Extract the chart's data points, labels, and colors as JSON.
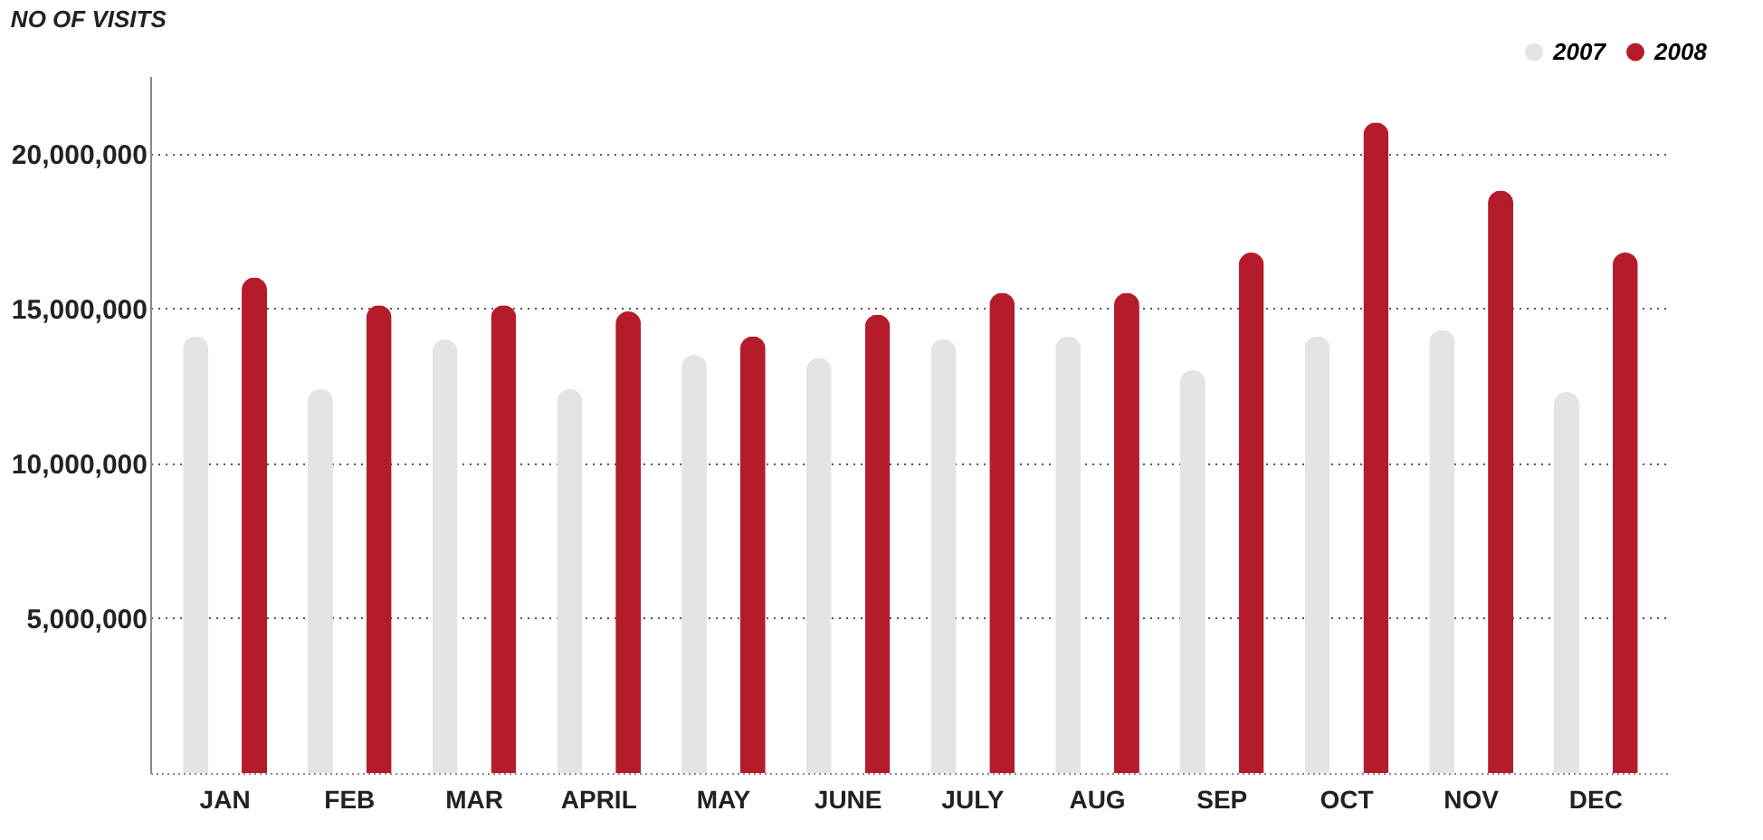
{
  "chart_data": {
    "type": "bar",
    "title": "NO OF VISITS",
    "categories": [
      "JAN",
      "FEB",
      "MAR",
      "APRIL",
      "MAY",
      "JUNE",
      "JULY",
      "AUG",
      "SEP",
      "OCT",
      "NOV",
      "DEC"
    ],
    "series": [
      {
        "name": "2007",
        "color": "#e3e4e6",
        "values": [
          14100000,
          12400000,
          14000000,
          12400000,
          13500000,
          13400000,
          14000000,
          14100000,
          13000000,
          14100000,
          14300000,
          12300000
        ]
      },
      {
        "name": "2008",
        "color": "#b51c2b",
        "values": [
          16000000,
          15100000,
          15100000,
          14900000,
          14100000,
          14800000,
          15500000,
          15500000,
          16800000,
          21000000,
          18800000,
          16800000
        ]
      }
    ],
    "ylim": [
      0,
      22500000
    ],
    "yticks": [
      {
        "value": 5000000,
        "label": "5,000,000"
      },
      {
        "value": 10000000,
        "label": "10,000,000"
      },
      {
        "value": 15000000,
        "label": "15,000,000"
      },
      {
        "value": 20000000,
        "label": "20,000,000"
      }
    ],
    "grid": "y",
    "legend": "top right"
  }
}
